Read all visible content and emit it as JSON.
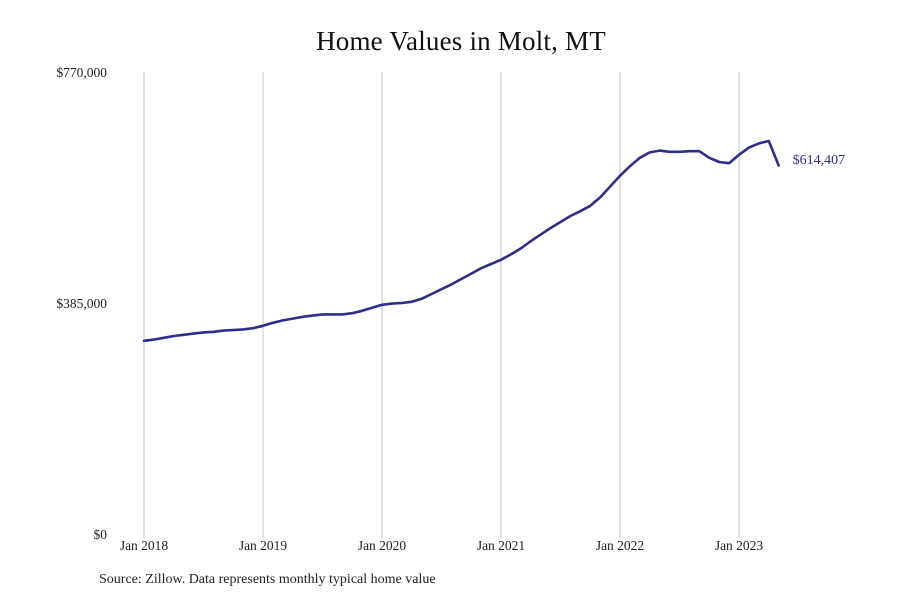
{
  "chart_data": {
    "type": "line",
    "title": "Home Values in Molt, MT",
    "xlabel": "",
    "ylabel": "",
    "grid": "vertical",
    "line_color": "#2e2e8a",
    "grid_color": "#c4c4c4",
    "ylim": [
      0,
      770000
    ],
    "xlim": [
      "2018-01",
      "2023-12"
    ],
    "x_ticks": [
      "Jan 2018",
      "Jan 2019",
      "Jan 2020",
      "Jan 2021",
      "Jan 2022",
      "Jan 2023"
    ],
    "y_ticks": [
      {
        "value": 0,
        "label": "$0"
      },
      {
        "value": 385000,
        "label": "$385,000"
      },
      {
        "value": 770000,
        "label": "$770,000"
      }
    ],
    "end_label": "$614,407",
    "series": [
      {
        "x": [
          "2018-01",
          "2018-02",
          "2018-03",
          "2018-04",
          "2018-05",
          "2018-06",
          "2018-07",
          "2018-08",
          "2018-09",
          "2018-10",
          "2018-11",
          "2018-12",
          "2019-01",
          "2019-02",
          "2019-03",
          "2019-04",
          "2019-05",
          "2019-06",
          "2019-07",
          "2019-08",
          "2019-09",
          "2019-10",
          "2019-11",
          "2019-12",
          "2020-01",
          "2020-02",
          "2020-03",
          "2020-04",
          "2020-05",
          "2020-06",
          "2020-07",
          "2020-08",
          "2020-09",
          "2020-10",
          "2020-11",
          "2020-12",
          "2021-01",
          "2021-02",
          "2021-03",
          "2021-04",
          "2021-05",
          "2021-06",
          "2021-07",
          "2021-08",
          "2021-09",
          "2021-10",
          "2021-11",
          "2021-12",
          "2022-01",
          "2022-02",
          "2022-03",
          "2022-04",
          "2022-05",
          "2022-06",
          "2022-07",
          "2022-08",
          "2022-09",
          "2022-10",
          "2022-11",
          "2022-12",
          "2023-01",
          "2023-02",
          "2023-03",
          "2023-04",
          "2023-05"
        ],
        "values": [
          322000,
          324000,
          327000,
          330000,
          332000,
          334000,
          336000,
          337000,
          339000,
          340000,
          341000,
          343000,
          347000,
          352000,
          356000,
          359000,
          362000,
          364000,
          366000,
          366000,
          366000,
          368000,
          372000,
          377000,
          382000,
          384000,
          385000,
          387000,
          392000,
          400000,
          408000,
          416000,
          425000,
          434000,
          443000,
          450000,
          457000,
          466000,
          476000,
          488000,
          499000,
          510000,
          520000,
          530000,
          538000,
          547000,
          561000,
          579000,
          597000,
          613000,
          627000,
          636000,
          639000,
          637000,
          637000,
          638000,
          638000,
          627000,
          620000,
          618000,
          632000,
          644000,
          651000,
          655000,
          614407
        ]
      }
    ]
  },
  "source_note": "Source: Zillow. Data represents monthly typical home value"
}
